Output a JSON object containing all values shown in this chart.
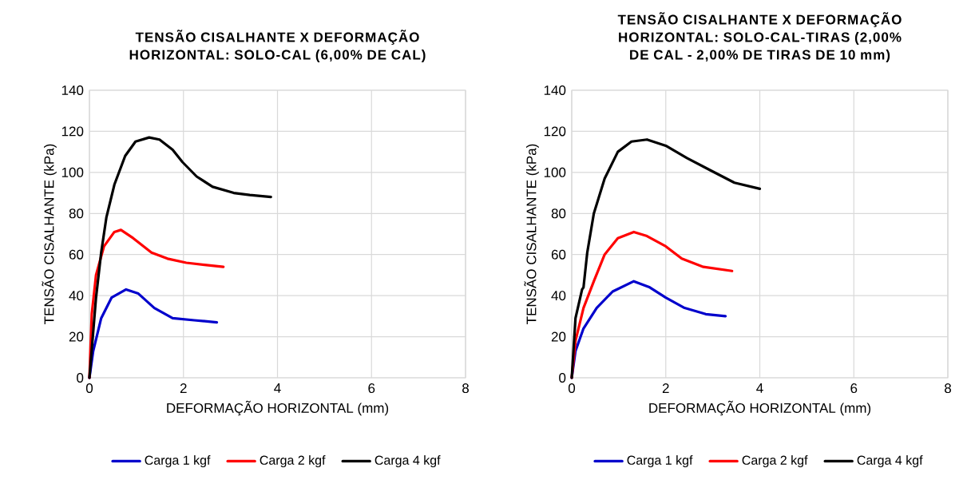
{
  "chart_data": [
    {
      "type": "line",
      "title": "TENSÃO CISALHANTE X DEFORMAÇÃO HORIZONTAL: SOLO-CAL (6,00% DE CAL)",
      "xlabel": "DEFORMAÇÃO HORIZONTAL (mm)",
      "ylabel": "TENSÃO CISALHANTE (kPa)",
      "xlim": [
        0,
        8
      ],
      "ylim": [
        0,
        140
      ],
      "xticks": [
        0,
        2,
        4,
        6,
        8
      ],
      "yticks": [
        0,
        20,
        40,
        60,
        80,
        100,
        120,
        140
      ],
      "grid": true,
      "legend": "bottom",
      "marker": "none",
      "series": [
        {
          "name": "Carga 1 kgf",
          "color": "#0000cc",
          "x": [
            0,
            0.08,
            0.25,
            0.47,
            0.78,
            1.04,
            1.38,
            1.77,
            2.23,
            2.71
          ],
          "values": [
            0,
            13,
            29,
            39,
            43,
            41,
            34,
            29,
            28,
            27
          ]
        },
        {
          "name": "Carga 2 kgf",
          "color": "#ff0000",
          "x": [
            0,
            0.05,
            0.14,
            0.31,
            0.53,
            0.67,
            0.93,
            1.32,
            1.66,
            2.06,
            2.45,
            2.85
          ],
          "values": [
            0,
            31,
            50,
            64,
            71,
            72,
            68,
            61,
            58,
            56,
            55,
            54
          ]
        },
        {
          "name": "Carga 4 kgf",
          "color": "#000000",
          "x": [
            0,
            0.14,
            0.25,
            0.36,
            0.53,
            0.76,
            0.98,
            1.27,
            1.49,
            1.77,
            1.98,
            2.28,
            2.62,
            3.07,
            3.41,
            3.86
          ],
          "values": [
            0,
            39,
            61,
            78,
            94,
            108,
            115,
            117,
            116,
            111,
            105,
            98,
            93,
            90,
            89,
            88
          ]
        }
      ]
    },
    {
      "type": "line",
      "title": "TENSÃO CISALHANTE X DEFORMAÇÃO HORIZONTAL: SOLO-CAL-TIRAS (2,00% DE CAL - 2,00% DE TIRAS DE 10 mm)",
      "xlabel": "DEFORMAÇÃO HORIZONTAL (mm)",
      "ylabel": "TENSÃO CISALHANTE (kPa)",
      "xlim": [
        0,
        8
      ],
      "ylim": [
        0,
        140
      ],
      "xticks": [
        0,
        2,
        4,
        6,
        8
      ],
      "yticks": [
        0,
        20,
        40,
        60,
        80,
        100,
        120,
        140
      ],
      "grid": true,
      "legend": "bottom",
      "marker": "none",
      "series": [
        {
          "name": "Carga 1 kgf",
          "color": "#0000cc",
          "x": [
            0,
            0.08,
            0.25,
            0.53,
            0.87,
            1.32,
            1.66,
            2,
            2.4,
            2.85,
            3.27
          ],
          "values": [
            0,
            13,
            24,
            34,
            42,
            47,
            44,
            39,
            34,
            31,
            30
          ]
        },
        {
          "name": "Carga 2 kgf",
          "color": "#ff0000",
          "x": [
            0,
            0.08,
            0.25,
            0.47,
            0.7,
            0.98,
            1.32,
            1.6,
            2,
            2.34,
            2.8,
            3.41
          ],
          "values": [
            0,
            18,
            34,
            47,
            60,
            68,
            71,
            69,
            64,
            58,
            54,
            52
          ]
        },
        {
          "name": "Carga 4 kgf",
          "color": "#000000",
          "x": [
            0,
            0.08,
            0.22,
            0.25,
            0.33,
            0.47,
            0.7,
            0.98,
            1.27,
            1.6,
            2,
            2.45,
            2.95,
            3.46,
            4
          ],
          "values": [
            0,
            29,
            43,
            44,
            61,
            80,
            97,
            110,
            115,
            116,
            113,
            107,
            101,
            95,
            92
          ]
        }
      ]
    }
  ]
}
